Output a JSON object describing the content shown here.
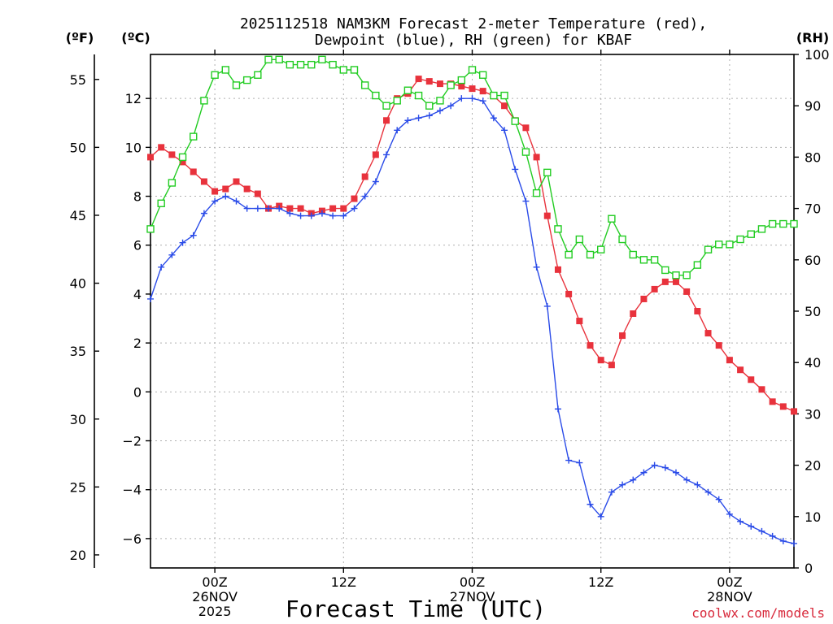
{
  "chart_data": {
    "type": "line",
    "title": [
      "2025112518 NAM3KM Forecast 2-meter Temperature (red),",
      "Dewpoint (blue), RH (green) for KBAF"
    ],
    "xlabel": "Forecast Time (UTC)",
    "watermark": "coolwx.com/models",
    "y_left_celsius": {
      "label": "(ºC)",
      "ylim": [
        -7.2,
        13.8
      ],
      "ticks": [
        -6,
        -4,
        -2,
        0,
        2,
        4,
        6,
        8,
        10,
        12
      ]
    },
    "y_left_fahrenheit": {
      "label": "(ºF)",
      "ticks": [
        20,
        25,
        30,
        35,
        40,
        45,
        50,
        55
      ]
    },
    "y_right_rh": {
      "label": "(RH)",
      "ylim": [
        0,
        100
      ],
      "ticks": [
        0,
        10,
        20,
        30,
        40,
        50,
        60,
        70,
        80,
        90,
        100
      ]
    },
    "x_hours_from_00z_26nov": {
      "xlim": [
        -6,
        54
      ]
    },
    "x_ticks": [
      {
        "hour": 0,
        "lines": [
          "00Z",
          "26NOV",
          "2025"
        ]
      },
      {
        "hour": 12,
        "lines": [
          "12Z"
        ]
      },
      {
        "hour": 24,
        "lines": [
          "00Z",
          "27NOV"
        ]
      },
      {
        "hour": 36,
        "lines": [
          "12Z"
        ]
      },
      {
        "hour": 48,
        "lines": [
          "00Z",
          "28NOV"
        ]
      }
    ],
    "grid": true,
    "series": [
      {
        "name": "Temperature",
        "unit": "C",
        "axis": "celsius",
        "color": "#e8323c",
        "marker": "filled-square",
        "x": [
          -6,
          -5,
          -4,
          -3,
          -2,
          -1,
          0,
          1,
          2,
          3,
          4,
          5,
          6,
          7,
          8,
          9,
          10,
          11,
          12,
          13,
          14,
          15,
          16,
          17,
          18,
          19,
          20,
          21,
          22,
          23,
          24,
          25,
          26,
          27,
          28,
          29,
          30,
          31,
          32,
          33,
          34,
          35,
          36,
          37,
          38,
          39,
          40,
          41,
          42,
          43,
          44,
          45,
          46,
          47,
          48,
          49,
          50,
          51,
          52,
          53,
          54
        ],
        "values": [
          9.6,
          10.0,
          9.7,
          9.4,
          9.0,
          8.6,
          8.2,
          8.3,
          8.6,
          8.3,
          8.1,
          7.5,
          7.6,
          7.5,
          7.5,
          7.3,
          7.4,
          7.5,
          7.5,
          7.9,
          8.8,
          9.7,
          11.1,
          12.0,
          12.2,
          12.8,
          12.7,
          12.6,
          12.6,
          12.5,
          12.4,
          12.3,
          12.1,
          11.7,
          11.1,
          10.8,
          9.6,
          7.2,
          5.0,
          4.0,
          2.9,
          1.9,
          1.3,
          1.1,
          2.3,
          3.2,
          3.8,
          4.2,
          4.5,
          4.5,
          4.1,
          3.3,
          2.4,
          1.9,
          1.3,
          0.9,
          0.5,
          0.1,
          -0.4,
          -0.6,
          -0.8
        ]
      },
      {
        "name": "Dewpoint",
        "unit": "C",
        "axis": "celsius",
        "color": "#2a4be8",
        "marker": "plus",
        "x": [
          -6,
          -5,
          -4,
          -3,
          -2,
          -1,
          0,
          1,
          2,
          3,
          4,
          5,
          6,
          7,
          8,
          9,
          10,
          11,
          12,
          13,
          14,
          15,
          16,
          17,
          18,
          19,
          20,
          21,
          22,
          23,
          24,
          25,
          26,
          27,
          28,
          29,
          30,
          31,
          32,
          33,
          34,
          35,
          36,
          37,
          38,
          39,
          40,
          41,
          42,
          43,
          44,
          45,
          46,
          47,
          48,
          49,
          50,
          51,
          52,
          53,
          54
        ],
        "values": [
          3.8,
          5.1,
          5.6,
          6.1,
          6.4,
          7.3,
          7.8,
          8.0,
          7.8,
          7.5,
          7.5,
          7.5,
          7.5,
          7.3,
          7.2,
          7.2,
          7.3,
          7.2,
          7.2,
          7.5,
          8.0,
          8.6,
          9.7,
          10.7,
          11.1,
          11.2,
          11.3,
          11.5,
          11.7,
          12.0,
          12.0,
          11.9,
          11.2,
          10.7,
          9.1,
          7.8,
          5.1,
          3.5,
          -0.7,
          -2.8,
          -2.9,
          -4.6,
          -5.1,
          -4.1,
          -3.8,
          -3.6,
          -3.3,
          -3.0,
          -3.1,
          -3.3,
          -3.6,
          -3.8,
          -4.1,
          -4.4,
          -5.0,
          -5.3,
          -5.5,
          -5.7,
          -5.9,
          -6.1,
          -6.2
        ]
      },
      {
        "name": "RH",
        "unit": "%",
        "axis": "rh",
        "color": "#22cc22",
        "marker": "open-square",
        "x": [
          -6,
          -5,
          -4,
          -3,
          -2,
          -1,
          0,
          1,
          2,
          3,
          4,
          5,
          6,
          7,
          8,
          9,
          10,
          11,
          12,
          13,
          14,
          15,
          16,
          17,
          18,
          19,
          20,
          21,
          22,
          23,
          24,
          25,
          26,
          27,
          28,
          29,
          30,
          31,
          32,
          33,
          34,
          35,
          36,
          37,
          38,
          39,
          40,
          41,
          42,
          43,
          44,
          45,
          46,
          47,
          48,
          49,
          50,
          51,
          52,
          53,
          54
        ],
        "values": [
          66,
          71,
          75,
          80,
          84,
          91,
          96,
          97,
          94,
          95,
          96,
          99,
          99,
          98,
          98,
          98,
          99,
          98,
          97,
          97,
          94,
          92,
          90,
          91,
          93,
          92,
          90,
          91,
          94,
          95,
          97,
          96,
          92,
          92,
          87,
          81,
          73,
          77,
          66,
          61,
          64,
          61,
          62,
          68,
          64,
          61,
          60,
          60,
          58,
          57,
          57,
          59,
          62,
          63,
          63,
          64,
          65,
          66,
          67,
          67,
          67
        ]
      }
    ]
  }
}
